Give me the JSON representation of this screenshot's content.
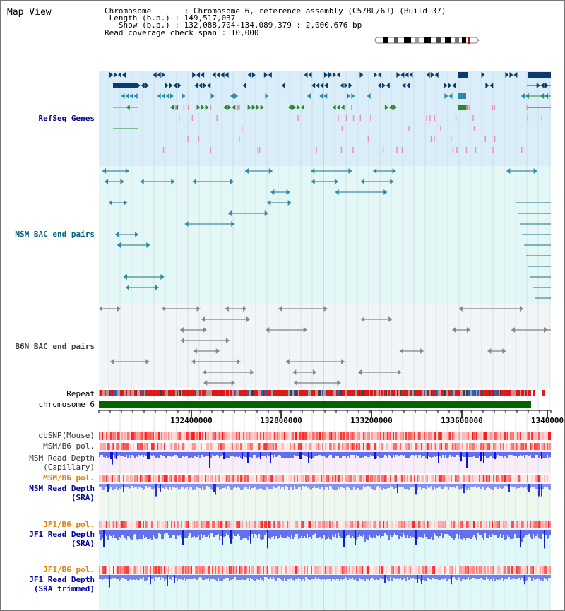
{
  "page_title": "Map View",
  "header": {
    "chromosome_line": "Chromosome       : Chromosome 6, reference assembly (C57BL/6J) (Build 37)",
    "length_line": " Length (b.p.) : 149,517,037",
    "show_line": "   Show (b.p.) : 132,088,704-134,089,379 : 2,000,676 bp",
    "coverage_line": "Read coverage check span : 10,000"
  },
  "tracks": {
    "refseq": "RefSeq Genes",
    "msm_bac": "MSM BAC end pairs",
    "b6n_bac": "B6N BAC end pairs",
    "repeat": "Repeat",
    "chromosome": "chromosome 6",
    "dbsnp": "dbSNP(Mouse)",
    "msm_b6_pol": "MSM/B6 pol.",
    "msm_read_depth_cap_1": "MSM Read Depth",
    "msm_read_depth_cap_2": "(Capillary)",
    "msm_b6_pol_2": "MSM/B6 pol.",
    "msm_read_depth_sra_1": "MSM Read Depth",
    "msm_read_depth_sra_2": "(SRA)",
    "jf1_b6_pol": "JF1/B6 pol.",
    "jf1_read_depth_1": "JF1 Read Depth",
    "jf1_read_depth_2": "(SRA)",
    "jf1_b6_pol_2": "JF1/B6 pol.",
    "jf1_trim_1": "JF1 Read Depth",
    "jf1_trim_2": "(SRA trimmed)"
  },
  "axis": {
    "ticks": [
      "132400000",
      "132800000",
      "133200000",
      "133600000",
      "1340000"
    ]
  },
  "colors": {
    "refseq_bg": "#d9eef8",
    "msm_bg": "#e4f7f7",
    "b6n_bg": "#f2f5f7",
    "label_refseq": "#000080",
    "label_msm": "#006080",
    "label_b6n": "#404040",
    "label_pol": "#e08000",
    "label_depth": "#0000a0",
    "chromosome_green": "#006400",
    "gene_dark": "#0a3d6e",
    "gene_teal": "#2a8aa8",
    "gene_green": "#2a8a2a",
    "gene_pink": "#f08fb0"
  }
}
